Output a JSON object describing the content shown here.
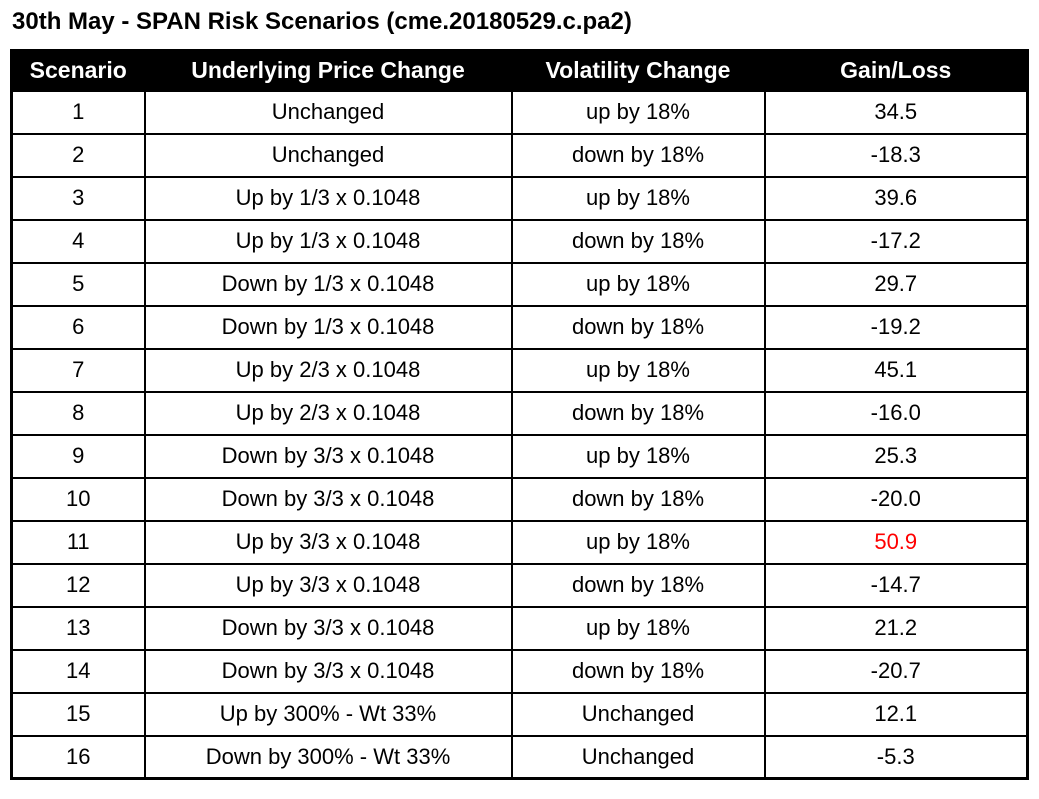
{
  "title": "30th May - SPAN Risk Scenarios (cme.20180529.c.pa2)",
  "table": {
    "columns": [
      "Scenario",
      "Underlying Price Change",
      "Volatility Change",
      "Gain/Loss"
    ],
    "rows": [
      {
        "scenario": "1",
        "price_change": "Unchanged",
        "volatility_change": "up by 18%",
        "gain_loss": "34.5",
        "highlight": false
      },
      {
        "scenario": "2",
        "price_change": "Unchanged",
        "volatility_change": "down by 18%",
        "gain_loss": "-18.3",
        "highlight": false
      },
      {
        "scenario": "3",
        "price_change": "Up by 1/3 x 0.1048",
        "volatility_change": "up by 18%",
        "gain_loss": "39.6",
        "highlight": false
      },
      {
        "scenario": "4",
        "price_change": "Up by 1/3 x 0.1048",
        "volatility_change": "down by 18%",
        "gain_loss": "-17.2",
        "highlight": false
      },
      {
        "scenario": "5",
        "price_change": "Down by 1/3 x 0.1048",
        "volatility_change": "up by 18%",
        "gain_loss": "29.7",
        "highlight": false
      },
      {
        "scenario": "6",
        "price_change": "Down by 1/3 x 0.1048",
        "volatility_change": "down by 18%",
        "gain_loss": "-19.2",
        "highlight": false
      },
      {
        "scenario": "7",
        "price_change": "Up by 2/3 x 0.1048",
        "volatility_change": "up by 18%",
        "gain_loss": "45.1",
        "highlight": false
      },
      {
        "scenario": "8",
        "price_change": "Up by 2/3 x 0.1048",
        "volatility_change": "down by 18%",
        "gain_loss": "-16.0",
        "highlight": false
      },
      {
        "scenario": "9",
        "price_change": "Down by 3/3 x 0.1048",
        "volatility_change": "up by 18%",
        "gain_loss": "25.3",
        "highlight": false
      },
      {
        "scenario": "10",
        "price_change": "Down by 3/3 x 0.1048",
        "volatility_change": "down by 18%",
        "gain_loss": "-20.0",
        "highlight": false
      },
      {
        "scenario": "11",
        "price_change": "Up by 3/3 x 0.1048",
        "volatility_change": "up by 18%",
        "gain_loss": "50.9",
        "highlight": true
      },
      {
        "scenario": "12",
        "price_change": "Up by 3/3 x 0.1048",
        "volatility_change": "down by 18%",
        "gain_loss": "-14.7",
        "highlight": false
      },
      {
        "scenario": "13",
        "price_change": "Down by 3/3 x 0.1048",
        "volatility_change": "up by 18%",
        "gain_loss": "21.2",
        "highlight": false
      },
      {
        "scenario": "14",
        "price_change": "Down by 3/3 x 0.1048",
        "volatility_change": "down by 18%",
        "gain_loss": "-20.7",
        "highlight": false
      },
      {
        "scenario": "15",
        "price_change": "Up by 300% - Wt 33%",
        "volatility_change": "Unchanged",
        "gain_loss": "12.1",
        "highlight": false
      },
      {
        "scenario": "16",
        "price_change": "Down by 300% - Wt 33%",
        "volatility_change": "Unchanged",
        "gain_loss": "-5.3",
        "highlight": false
      }
    ]
  },
  "colors": {
    "header_bg": "#000000",
    "header_text": "#FFFFFF",
    "body_text": "#000000",
    "highlight_text": "#FF0000",
    "border": "#000000"
  }
}
